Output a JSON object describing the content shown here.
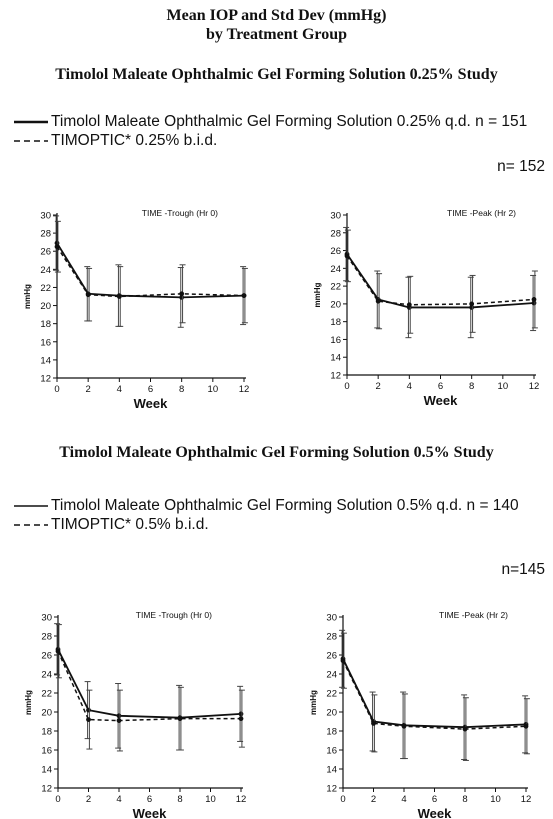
{
  "header": {
    "title_line1": "Mean IOP and Std Dev (mmHg)",
    "title_line2": "by Treatment Group"
  },
  "studies": [
    {
      "title": "Timolol Maleate Ophthalmic Gel Forming Solution 0.25% Study",
      "legend": [
        "Timolol Maleate Ophthalmic Gel Forming Solution 0.25% q.d. n = 151",
        "TIMOPTIC* 0.25% b.i.d."
      ],
      "n_label": "n= 152"
    },
    {
      "title": "Timolol Maleate Ophthalmic Gel Forming Solution 0.5% Study",
      "legend": [
        "Timolol Maleate Ophthalmic Gel Forming Solution 0.5% q.d. n = 140",
        "TIMOPTIC* 0.5% b.i.d."
      ],
      "n_label": "n=145"
    }
  ],
  "colors": {
    "ink": "#111111",
    "error_bar": "#444444"
  },
  "chart_data": [
    {
      "type": "line",
      "study": "0.25%",
      "annotation": "TIME -Trough (Hr 0)",
      "xlabel": "Week",
      "ylabel": "mmHg",
      "x": [
        0,
        2,
        4,
        8,
        12
      ],
      "xticks": [
        0,
        2,
        4,
        6,
        8,
        10,
        12
      ],
      "yticks": [
        12,
        14,
        16,
        18,
        20,
        22,
        24,
        26,
        28,
        30
      ],
      "xlim": [
        0,
        12
      ],
      "ylim": [
        12,
        30
      ],
      "grid": false,
      "series": [
        {
          "style": "solid",
          "values": [
            26.9,
            21.3,
            21.1,
            20.9,
            21.1
          ],
          "error": [
            3.0,
            3.0,
            3.4,
            3.3,
            3.2
          ]
        },
        {
          "style": "dashed",
          "values": [
            26.5,
            21.2,
            21.0,
            21.3,
            21.1
          ],
          "error": [
            2.8,
            2.9,
            3.3,
            3.2,
            3.0
          ]
        }
      ]
    },
    {
      "type": "line",
      "study": "0.25%",
      "annotation": "TIME -Peak (Hr 2)",
      "xlabel": "Week",
      "ylabel": "mmHg",
      "x": [
        0,
        2,
        4,
        8,
        12
      ],
      "xticks": [
        0,
        2,
        4,
        6,
        8,
        10,
        12
      ],
      "yticks": [
        12,
        14,
        16,
        18,
        20,
        22,
        24,
        26,
        28,
        30
      ],
      "xlim": [
        0,
        12
      ],
      "ylim": [
        12,
        30
      ],
      "grid": false,
      "series": [
        {
          "style": "solid",
          "values": [
            25.6,
            20.5,
            19.6,
            19.6,
            20.1
          ],
          "error": [
            3.0,
            3.2,
            3.4,
            3.4,
            3.1
          ]
        },
        {
          "style": "dashed",
          "values": [
            25.4,
            20.3,
            19.9,
            20.0,
            20.5
          ],
          "error": [
            2.9,
            3.1,
            3.2,
            3.2,
            3.2
          ]
        }
      ]
    },
    {
      "type": "line",
      "study": "0.5%",
      "annotation": "TIME -Trough (Hr 0)",
      "xlabel": "Week",
      "ylabel": "mmHg",
      "x": [
        0,
        2,
        4,
        8,
        12
      ],
      "xticks": [
        0,
        2,
        4,
        6,
        8,
        10,
        12
      ],
      "yticks": [
        12,
        14,
        16,
        18,
        20,
        22,
        24,
        26,
        28,
        30
      ],
      "xlim": [
        0,
        12
      ],
      "ylim": [
        12,
        30
      ],
      "grid": false,
      "series": [
        {
          "style": "solid",
          "values": [
            26.6,
            20.2,
            19.6,
            19.4,
            19.8
          ],
          "error": [
            2.7,
            3.0,
            3.4,
            3.4,
            2.9
          ]
        },
        {
          "style": "dashed",
          "values": [
            26.4,
            19.2,
            19.1,
            19.3,
            19.3
          ],
          "error": [
            2.8,
            3.1,
            3.2,
            3.3,
            3.0
          ]
        }
      ]
    },
    {
      "type": "line",
      "study": "0.5%",
      "annotation": "TIME -Peak (Hr 2)",
      "xlabel": "Week",
      "ylabel": "mmHg",
      "x": [
        0,
        2,
        4,
        8,
        12
      ],
      "xticks": [
        0,
        2,
        4,
        6,
        8,
        10,
        12
      ],
      "yticks": [
        12,
        14,
        16,
        18,
        20,
        22,
        24,
        26,
        28,
        30
      ],
      "xlim": [
        0,
        12
      ],
      "ylim": [
        12,
        30
      ],
      "grid": false,
      "series": [
        {
          "style": "solid",
          "values": [
            25.6,
            19.0,
            18.6,
            18.4,
            18.7
          ],
          "error": [
            3.0,
            3.1,
            3.5,
            3.4,
            3.0
          ]
        },
        {
          "style": "dashed",
          "values": [
            25.4,
            18.8,
            18.5,
            18.2,
            18.5
          ],
          "error": [
            2.9,
            3.0,
            3.4,
            3.3,
            2.9
          ]
        }
      ]
    }
  ]
}
